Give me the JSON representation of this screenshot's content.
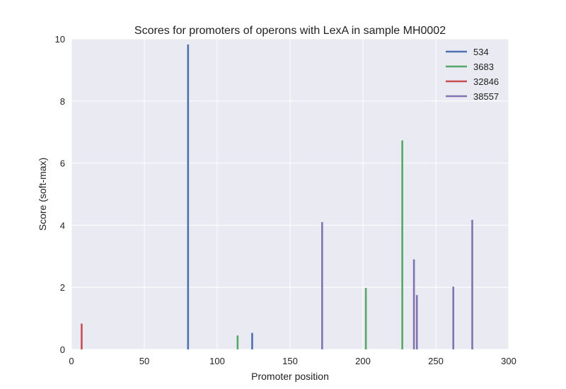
{
  "chart_data": {
    "type": "line",
    "title": "Scores for promoters of operons with LexA in sample MH0002",
    "xlabel": "Promoter position",
    "ylabel": "Score (soft-max)",
    "xlim": [
      0,
      300
    ],
    "ylim": [
      0,
      10
    ],
    "xticks": [
      "0",
      "50",
      "100",
      "150",
      "200",
      "250",
      "300"
    ],
    "yticks": [
      "0",
      "2",
      "4",
      "6",
      "8",
      "10"
    ],
    "grid": true,
    "legend_position": "top-right",
    "background_color": "#eaeaf2",
    "grid_color": "#ffffff",
    "series": [
      {
        "name": "534",
        "color": "#4c72b0",
        "spikes": [
          {
            "x": 80,
            "y": 9.82
          },
          {
            "x": 124,
            "y": 0.53
          }
        ]
      },
      {
        "name": "3683",
        "color": "#55a868",
        "spikes": [
          {
            "x": 114,
            "y": 0.45
          },
          {
            "x": 202,
            "y": 1.98
          },
          {
            "x": 227,
            "y": 6.73
          }
        ]
      },
      {
        "name": "32846",
        "color": "#c44e52",
        "spikes": [
          {
            "x": 7,
            "y": 0.83
          }
        ]
      },
      {
        "name": "38557",
        "color": "#8172b2",
        "spikes": [
          {
            "x": 172,
            "y": 4.1
          },
          {
            "x": 235,
            "y": 2.9
          },
          {
            "x": 237,
            "y": 1.75
          },
          {
            "x": 262,
            "y": 2.02
          },
          {
            "x": 275,
            "y": 4.17
          }
        ]
      }
    ]
  }
}
